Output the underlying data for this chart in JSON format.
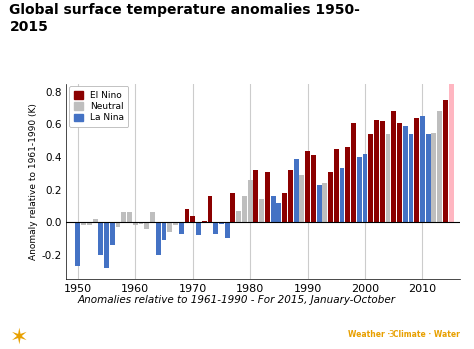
{
  "title": "Global surface temperature anomalies 1950-\n2015",
  "xlabel": "Anomalies relative to 1961-1990 - For 2015, January-October",
  "ylabel": "Anomaly relative to 1961-1990 (K)",
  "ylim": [
    -0.35,
    0.85
  ],
  "yticks": [
    -0.2,
    0.0,
    0.2,
    0.4,
    0.6,
    0.8
  ],
  "xticks": [
    1950,
    1960,
    1970,
    1980,
    1990,
    2000,
    2010
  ],
  "background_color": "#ffffff",
  "plot_bg_color": "#ffffff",
  "footer_line_color": "#E8A000",
  "years": [
    1950,
    1951,
    1952,
    1953,
    1954,
    1955,
    1956,
    1957,
    1958,
    1959,
    1960,
    1961,
    1962,
    1963,
    1964,
    1965,
    1966,
    1967,
    1968,
    1969,
    1970,
    1971,
    1972,
    1973,
    1974,
    1975,
    1976,
    1977,
    1978,
    1979,
    1980,
    1981,
    1982,
    1983,
    1984,
    1985,
    1986,
    1987,
    1988,
    1989,
    1990,
    1991,
    1992,
    1993,
    1994,
    1995,
    1996,
    1997,
    1998,
    1999,
    2000,
    2001,
    2002,
    2003,
    2004,
    2005,
    2006,
    2007,
    2008,
    2009,
    2010,
    2011,
    2012,
    2013,
    2014,
    2015
  ],
  "values": [
    -0.27,
    -0.02,
    -0.02,
    0.02,
    -0.2,
    -0.28,
    -0.14,
    -0.03,
    0.06,
    0.06,
    -0.02,
    -0.01,
    -0.04,
    0.06,
    -0.2,
    -0.11,
    -0.06,
    -0.02,
    -0.07,
    0.08,
    0.04,
    -0.08,
    0.01,
    0.16,
    -0.07,
    -0.01,
    -0.1,
    0.18,
    0.07,
    0.16,
    0.26,
    0.32,
    0.14,
    0.31,
    0.16,
    0.12,
    0.18,
    0.32,
    0.39,
    0.29,
    0.44,
    0.41,
    0.23,
    0.24,
    0.31,
    0.45,
    0.33,
    0.46,
    0.61,
    0.4,
    0.42,
    0.54,
    0.63,
    0.62,
    0.54,
    0.68,
    0.61,
    0.59,
    0.54,
    0.64,
    0.65,
    0.54,
    0.55,
    0.68,
    0.75,
    0.9
  ],
  "enso": [
    "La Nina",
    "Neutral",
    "Neutral",
    "Neutral",
    "La Nina",
    "La Nina",
    "La Nina",
    "Neutral",
    "Neutral",
    "Neutral",
    "Neutral",
    "Neutral",
    "Neutral",
    "Neutral",
    "La Nina",
    "La Nina",
    "Neutral",
    "Neutral",
    "La Nina",
    "El Nino",
    "El Nino",
    "La Nina",
    "El Nino",
    "El Nino",
    "La Nina",
    "La Nina",
    "La Nina",
    "El Nino",
    "Neutral",
    "Neutral",
    "Neutral",
    "El Nino",
    "Neutral",
    "El Nino",
    "La Nina",
    "La Nina",
    "El Nino",
    "El Nino",
    "La Nina",
    "Neutral",
    "El Nino",
    "El Nino",
    "La Nina",
    "Neutral",
    "El Nino",
    "El Nino",
    "La Nina",
    "El Nino",
    "El Nino",
    "La Nina",
    "La Nina",
    "El Nino",
    "El Nino",
    "El Nino",
    "Neutral",
    "El Nino",
    "El Nino",
    "La Nina",
    "La Nina",
    "El Nino",
    "La Nina",
    "La Nina",
    "Neutral",
    "Neutral",
    "El Nino",
    "El Nino"
  ],
  "el_nino_color": "#8B0000",
  "neutral_color": "#BEBEBE",
  "la_nina_color": "#4472C4",
  "el_nino_2015_color": "#FFB6C1",
  "grid_color": "#cccccc",
  "bar_width": 0.85
}
